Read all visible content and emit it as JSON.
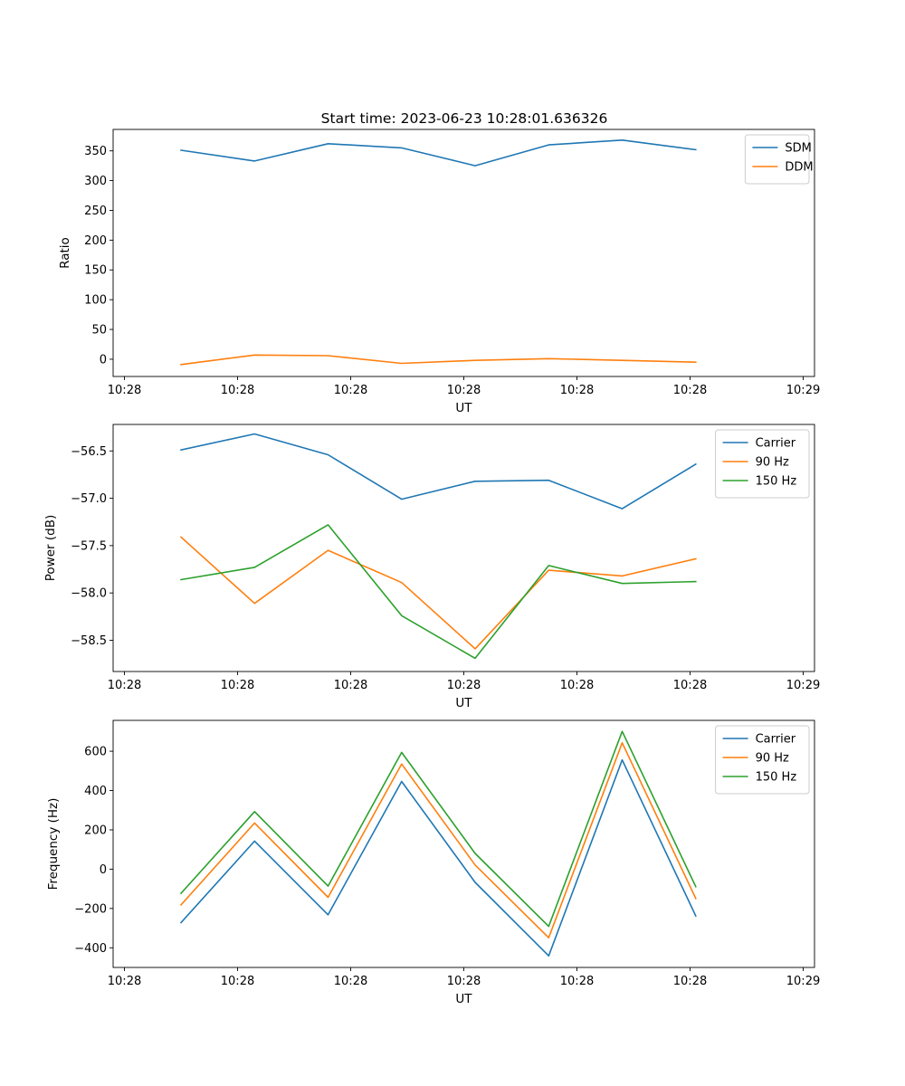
{
  "figure": {
    "title": "Start time: 2023-06-23 10:28:01.636326"
  },
  "chart_data": [
    {
      "type": "line",
      "title": "Start time: 2023-06-23 10:28:01.636326",
      "xlabel": "UT",
      "ylabel": "Ratio",
      "x_ticks": [
        "10:28",
        "10:28",
        "10:28",
        "10:28",
        "10:28",
        "10:28",
        "10:29"
      ],
      "y_ticks": [
        "0",
        "50",
        "100",
        "150",
        "200",
        "250",
        "300",
        "350"
      ],
      "ylim": [
        -29,
        386
      ],
      "grid": false,
      "legend_position": "top-right",
      "x": [
        0.5,
        1.15,
        1.8,
        2.45,
        3.1,
        3.75,
        4.4,
        5.05
      ],
      "series": [
        {
          "name": "SDM",
          "color": "#1f77b4",
          "values": [
            351,
            333,
            362,
            355,
            325,
            360,
            368,
            352
          ]
        },
        {
          "name": "DDM",
          "color": "#ff7f0e",
          "values": [
            -9,
            7,
            6,
            -7,
            -2,
            1,
            -2,
            -5
          ]
        }
      ]
    },
    {
      "type": "line",
      "xlabel": "UT",
      "ylabel": "Power (dB)",
      "x_ticks": [
        "10:28",
        "10:28",
        "10:28",
        "10:28",
        "10:28",
        "10:28",
        "10:29"
      ],
      "y_ticks": [
        "−56.5",
        "−57.0",
        "−57.5",
        "−58.0",
        "−58.5"
      ],
      "ylim": [
        -58.83,
        -56.22
      ],
      "grid": false,
      "legend_position": "top-right",
      "x": [
        0.5,
        1.15,
        1.8,
        2.45,
        3.1,
        3.75,
        4.4,
        5.05
      ],
      "series": [
        {
          "name": "Carrier",
          "color": "#1f77b4",
          "values": [
            -56.49,
            -56.32,
            -56.54,
            -57.01,
            -56.82,
            -56.81,
            -57.11,
            -56.64
          ]
        },
        {
          "name": "90 Hz",
          "color": "#ff7f0e",
          "values": [
            -57.41,
            -58.11,
            -57.55,
            -57.89,
            -58.59,
            -57.76,
            -57.82,
            -57.64
          ]
        },
        {
          "name": "150 Hz",
          "color": "#2ca02c",
          "values": [
            -57.86,
            -57.73,
            -57.28,
            -58.24,
            -58.69,
            -57.71,
            -57.9,
            -57.88
          ]
        }
      ]
    },
    {
      "type": "line",
      "xlabel": "UT",
      "ylabel": "Frequency (Hz)",
      "x_ticks": [
        "10:28",
        "10:28",
        "10:28",
        "10:28",
        "10:28",
        "10:28",
        "10:29"
      ],
      "y_ticks": [
        "−400",
        "−200",
        "0",
        "200",
        "400",
        "600"
      ],
      "ylim": [
        -500,
        757
      ],
      "grid": false,
      "legend_position": "top-right",
      "x": [
        0.5,
        1.15,
        1.8,
        2.45,
        3.1,
        3.75,
        4.4,
        5.05
      ],
      "series": [
        {
          "name": "Carrier",
          "color": "#1f77b4",
          "values": [
            -272,
            143,
            -232,
            446,
            -67,
            -441,
            556,
            -238
          ]
        },
        {
          "name": "90 Hz",
          "color": "#ff7f0e",
          "values": [
            -182,
            235,
            -143,
            535,
            21,
            -349,
            643,
            -149
          ]
        },
        {
          "name": "150 Hz",
          "color": "#2ca02c",
          "values": [
            -123,
            293,
            -86,
            594,
            80,
            -291,
            701,
            -89
          ]
        }
      ]
    }
  ]
}
